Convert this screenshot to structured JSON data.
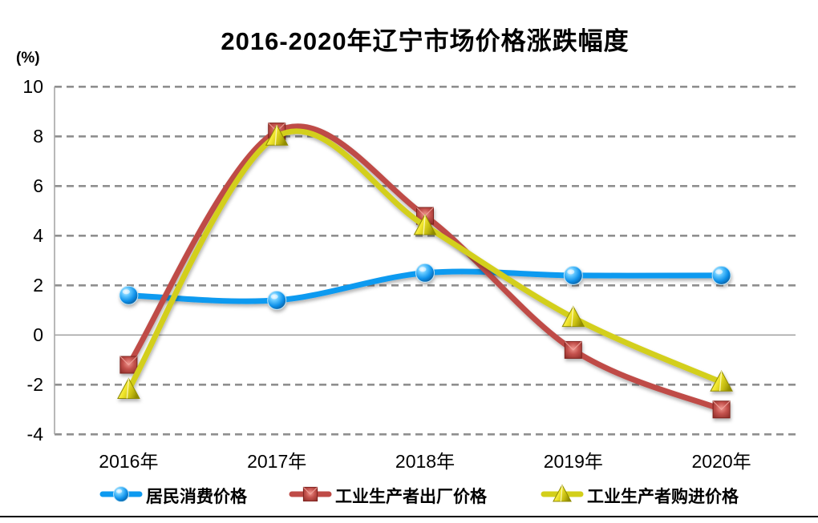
{
  "title": "2016-2020年辽宁市场价格涨跌幅度",
  "y_unit_label": "(%)",
  "chart_data": {
    "type": "line",
    "title": "2016-2020年辽宁市场价格涨跌幅度",
    "xlabel": "",
    "ylabel": "(%)",
    "categories": [
      "2016年",
      "2017年",
      "2018年",
      "2019年",
      "2020年"
    ],
    "series": [
      {
        "name": "居民消费价格",
        "marker": "circle",
        "color": "#0d9af0",
        "values": [
          1.6,
          1.4,
          2.5,
          2.4,
          2.4
        ]
      },
      {
        "name": "工业生产者出厂价格",
        "marker": "square",
        "color": "#bf4b47",
        "values": [
          -1.2,
          8.2,
          4.8,
          -0.6,
          -3.0
        ]
      },
      {
        "name": "工业生产者购进价格",
        "marker": "triangle",
        "color": "#d3cf1a",
        "values": [
          -2.2,
          8.0,
          4.4,
          0.7,
          -1.9
        ]
      }
    ],
    "yticks": [
      10,
      8,
      6,
      4,
      2,
      0,
      -2,
      -4
    ],
    "ylim": [
      -4,
      10
    ],
    "grid": "dashed-horizontal-gray",
    "zero_line": "solid-gray",
    "smooth": true,
    "legend_position": "bottom"
  },
  "style_colors": {
    "grid": "#8f8f8f",
    "axis": "#a6a6a6",
    "text": "#000000",
    "background": "#ffffff"
  }
}
